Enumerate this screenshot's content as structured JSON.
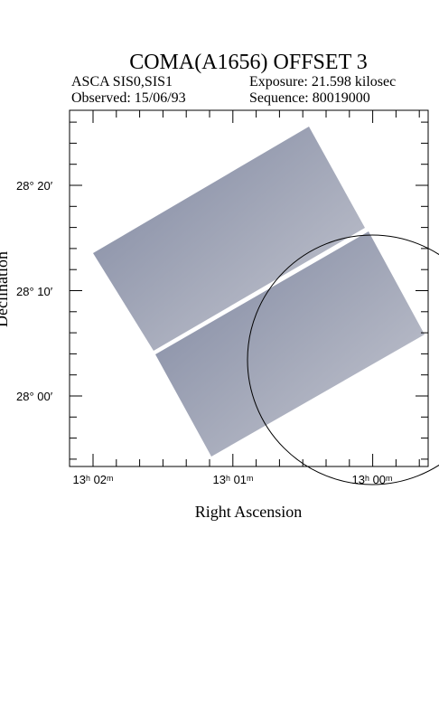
{
  "header": {
    "title": "COMA(A1656) OFFSET 3",
    "instrument": "ASCA SIS0,SIS1",
    "exposure": "Exposure: 21.598 kilosec",
    "observed": "Observed: 15/06/93",
    "sequence": "Sequence: 80019000"
  },
  "axes": {
    "y_label": "Declination",
    "x_label": "Right Ascension",
    "y_ticks": [
      "28° 20′",
      "28° 10′",
      "28° 00′"
    ],
    "x_ticks": [
      "13ʰ 02ᵐ",
      "13ʰ 01ᵐ",
      "13ʰ 00ᵐ"
    ]
  }
}
